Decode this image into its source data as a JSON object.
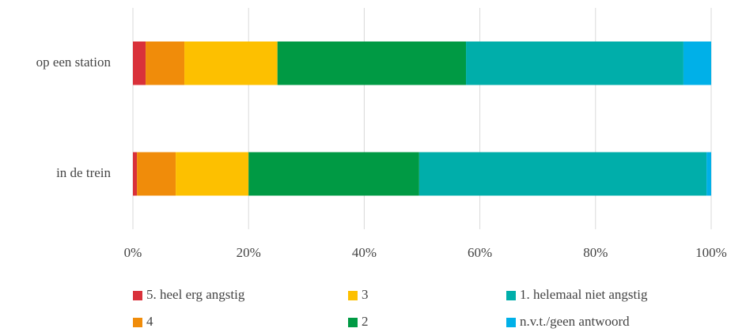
{
  "chart_data": {
    "type": "stacked_barh",
    "categories": [
      "op een station",
      "in de trein"
    ],
    "series": [
      {
        "name": "5. heel erg angstig",
        "color": "#d9313a",
        "values": [
          2.2,
          0.7
        ]
      },
      {
        "name": "4",
        "color": "#f08c0a",
        "values": [
          6.7,
          6.7
        ]
      },
      {
        "name": "3",
        "color": "#fdc000",
        "values": [
          16.1,
          12.6
        ]
      },
      {
        "name": "2",
        "color": "#009a44",
        "values": [
          32.6,
          29.5
        ]
      },
      {
        "name": "1. helemaal niet angstig",
        "color": "#00aeaa",
        "values": [
          37.6,
          49.7
        ]
      },
      {
        "name": "n.v.t./geen antwoord",
        "color": "#00b0e8",
        "values": [
          4.8,
          0.8
        ]
      }
    ],
    "xlim": [
      0,
      100
    ],
    "xticks": [
      {
        "value": 0,
        "label": "0%"
      },
      {
        "value": 20,
        "label": "20%"
      },
      {
        "value": 40,
        "label": "40%"
      },
      {
        "value": 60,
        "label": "60%"
      },
      {
        "value": 80,
        "label": "80%"
      },
      {
        "value": 100,
        "label": "100%"
      }
    ],
    "grid": true,
    "legend": "bottom"
  }
}
